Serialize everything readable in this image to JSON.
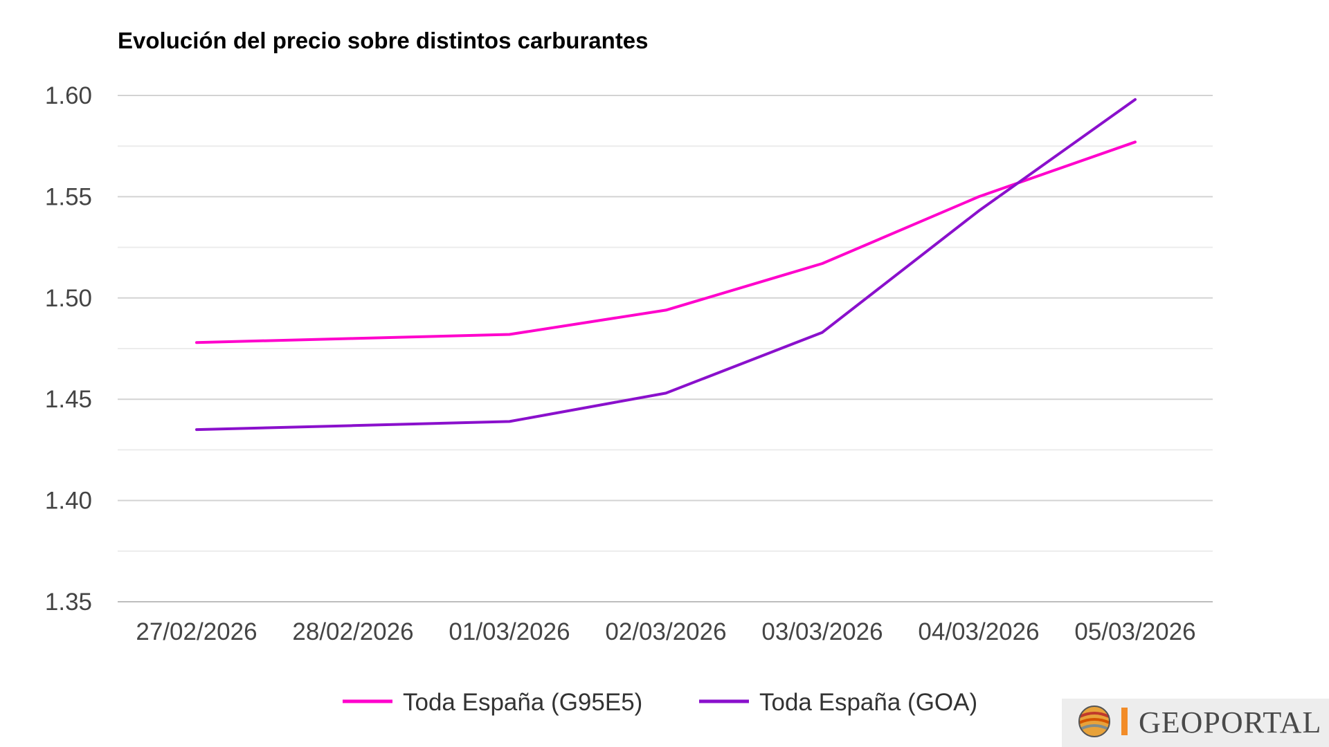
{
  "chart_data": {
    "type": "line",
    "title": "Evolución del precio sobre distintos carburantes",
    "xlabel": "",
    "ylabel": "",
    "categories": [
      "27/02/2026",
      "28/02/2026",
      "01/03/2026",
      "02/03/2026",
      "03/03/2026",
      "04/03/2026",
      "05/03/2026"
    ],
    "ylim": [
      1.35,
      1.6
    ],
    "yticks": [
      1.35,
      1.4,
      1.45,
      1.5,
      1.55,
      1.6
    ],
    "ytick_labels": [
      "1.35",
      "1.40",
      "1.45",
      "1.50",
      "1.55",
      "1.60"
    ],
    "minor_gridlines": [
      1.375,
      1.425,
      1.475,
      1.525,
      1.575
    ],
    "grid": true,
    "legend_position": "bottom-center",
    "series": [
      {
        "name": "Toda España (G95E5)",
        "color": "#ff00cc",
        "values": [
          1.478,
          1.48,
          1.482,
          1.494,
          1.517,
          1.55,
          1.577
        ]
      },
      {
        "name": "Toda España (GOA)",
        "color": "#8a10cc",
        "values": [
          1.435,
          1.437,
          1.439,
          1.453,
          1.483,
          1.543,
          1.598
        ]
      }
    ]
  },
  "watermark": {
    "text": "GEOPORTAL",
    "icon": "geoportal-globe-icon",
    "bar_color": "#f28c28"
  }
}
